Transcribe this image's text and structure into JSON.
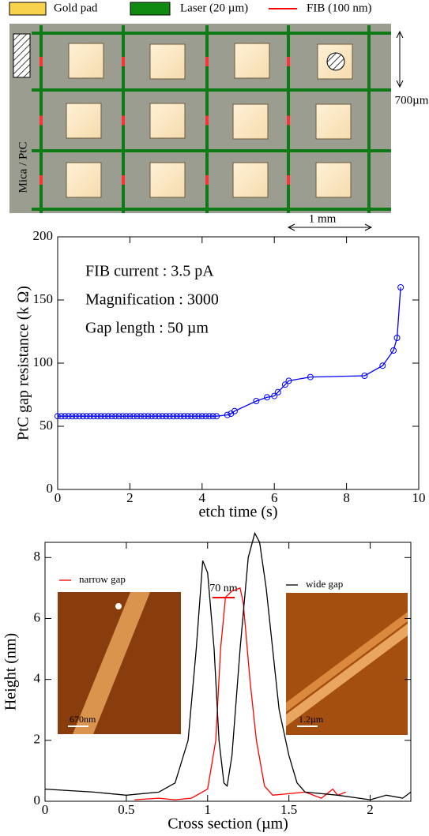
{
  "diagram": {
    "legend": [
      "Gold pad",
      "Laser (20 µm)",
      "FIB (100 nm)"
    ],
    "labels": {
      "substrate": "Mica / PtC",
      "height": "700µm",
      "width": "1 mm"
    }
  },
  "chart_data": [
    {
      "type": "line",
      "xlabel": "etch time (s)",
      "ylabel": "PtC gap resistance (k Ω)",
      "annotations": [
        "FIB current : 3.5 pA",
        "Magnification : 3000",
        "Gap length : 50 µm"
      ],
      "color": "#0000ff",
      "markers": true,
      "x": [
        0,
        0.1,
        0.2,
        0.3,
        0.4,
        0.5,
        0.6,
        0.7,
        0.8,
        0.9,
        1,
        1.1,
        1.2,
        1.3,
        1.4,
        1.5,
        1.6,
        1.7,
        1.8,
        1.9,
        2,
        2.1,
        2.2,
        2.3,
        2.4,
        2.5,
        2.6,
        2.7,
        2.8,
        2.9,
        3,
        3.1,
        3.2,
        3.3,
        3.4,
        3.5,
        3.6,
        3.7,
        3.8,
        3.9,
        4,
        4.1,
        4.2,
        4.3,
        4.4,
        4.7,
        4.8,
        4.9,
        5.5,
        5.8,
        6,
        6.1,
        6.3,
        6.4,
        7,
        8.5,
        9,
        9.3,
        9.4,
        9.5
      ],
      "values": [
        58,
        58,
        58,
        58,
        58,
        58,
        58,
        58,
        58,
        58,
        58,
        58,
        58,
        58,
        58,
        58,
        58,
        58,
        58,
        58,
        58,
        58,
        58,
        58,
        58,
        58,
        58,
        58,
        58,
        58,
        58,
        58,
        58,
        58,
        58,
        58,
        58,
        58,
        58,
        58,
        58,
        58,
        58,
        58,
        58,
        59,
        60,
        62,
        70,
        73,
        74,
        77,
        83,
        86,
        89,
        90,
        98,
        110,
        120,
        160
      ],
      "xlim": [
        0,
        10
      ],
      "ylim": [
        0,
        200
      ],
      "xticks": [
        0,
        2,
        4,
        6,
        8,
        10
      ],
      "yticks": [
        0,
        50,
        100,
        150,
        200
      ]
    },
    {
      "type": "line",
      "xlabel": "Cross section (µm)",
      "ylabel": "Height (nm)",
      "annotations": [
        "70 nm"
      ],
      "inset_labels": [
        "670nm",
        "1.2µm"
      ],
      "series": [
        {
          "name": "narrow gap",
          "color": "#ff0000",
          "x": [
            0.55,
            0.7,
            0.8,
            0.9,
            1.0,
            1.05,
            1.08,
            1.11,
            1.15,
            1.2,
            1.22,
            1.26,
            1.3,
            1.35,
            1.4,
            1.5,
            1.6,
            1.7,
            1.77,
            1.8,
            1.85
          ],
          "values": [
            0.05,
            0.1,
            0.05,
            0.1,
            0.4,
            2,
            5,
            6.7,
            6.9,
            7.0,
            6.5,
            4,
            2,
            0.5,
            0.2,
            0.25,
            0.3,
            0.1,
            0.4,
            0.2,
            0.3
          ]
        },
        {
          "name": "wide gap",
          "color": "#000000",
          "x": [
            0,
            0.3,
            0.5,
            0.7,
            0.8,
            0.88,
            0.93,
            0.97,
            1.0,
            1.04,
            1.07,
            1.1,
            1.12,
            1.15,
            1.2,
            1.25,
            1.29,
            1.32,
            1.36,
            1.4,
            1.44,
            1.5,
            1.55,
            1.6,
            1.8,
            2.0,
            2.1,
            2.2,
            2.25
          ],
          "values": [
            0.4,
            0.3,
            0.2,
            0.3,
            0.6,
            2,
            5,
            7.9,
            7.5,
            5,
            2,
            0.6,
            0.5,
            1.5,
            5,
            8,
            8.8,
            8.5,
            7,
            5,
            3,
            1.5,
            0.6,
            0.3,
            0.2,
            0.05,
            0.2,
            0.1,
            0.3
          ]
        }
      ],
      "xlim": [
        0,
        2.25
      ],
      "ylim": [
        0,
        8.5
      ],
      "xticks": [
        0,
        0.5,
        1,
        1.5,
        2
      ],
      "yticks": [
        0,
        2,
        4,
        6,
        8
      ]
    }
  ]
}
